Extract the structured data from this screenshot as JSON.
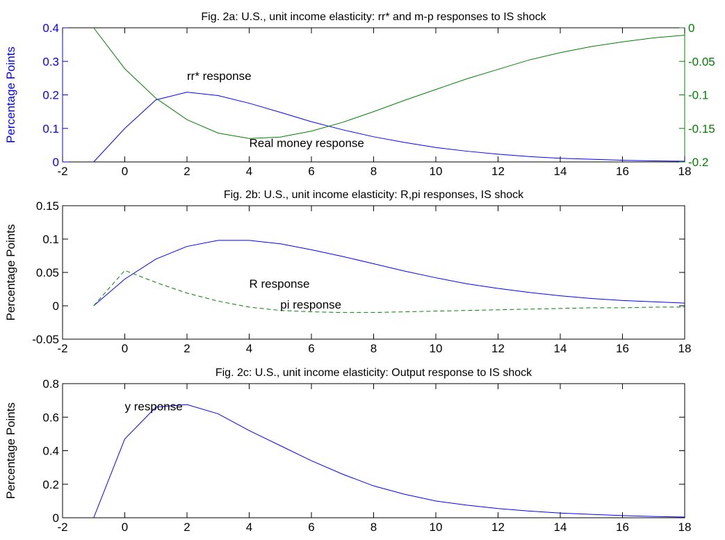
{
  "chart_data": [
    {
      "type": "line",
      "title": "Fig. 2a: U.S., unit income elasticity: rr* and m-p responses to IS shock",
      "ylabel": "Percentage Points",
      "y2label": "",
      "xlim": [
        -2,
        18
      ],
      "ylim": [
        0,
        0.4
      ],
      "y2lim": [
        -0.2,
        0
      ],
      "x_ticks": [
        "-2",
        "0",
        "2",
        "4",
        "6",
        "8",
        "10",
        "12",
        "14",
        "16",
        "18"
      ],
      "y_ticks": [
        "0",
        "0.1",
        "0.2",
        "0.3",
        "0.4"
      ],
      "y2_ticks": [
        "-0.2",
        "-0.15",
        "-0.1",
        "-0.05",
        "0"
      ],
      "grid": false,
      "left_axis_color": "#0000ff",
      "right_axis_color": "#008000",
      "series": [
        {
          "axis": "left",
          "color": "#0000ff",
          "style": "solid",
          "x": [
            -1,
            0,
            1,
            2,
            3,
            4,
            5,
            6,
            7,
            8,
            9,
            10,
            11,
            12,
            13,
            14,
            15,
            16,
            17,
            18
          ],
          "values": [
            0,
            0.1,
            0.185,
            0.208,
            0.198,
            0.175,
            0.148,
            0.12,
            0.096,
            0.075,
            0.058,
            0.043,
            0.032,
            0.023,
            0.016,
            0.011,
            0.008,
            0.005,
            0.003,
            0.002
          ]
        },
        {
          "axis": "right",
          "color": "#008000",
          "style": "solid",
          "x": [
            -1,
            0,
            1,
            2,
            3,
            4,
            5,
            6,
            7,
            8,
            9,
            10,
            11,
            12,
            13,
            14,
            15,
            16,
            17,
            18
          ],
          "values": [
            0,
            -0.061,
            -0.105,
            -0.137,
            -0.157,
            -0.165,
            -0.163,
            -0.154,
            -0.141,
            -0.125,
            -0.108,
            -0.092,
            -0.076,
            -0.062,
            -0.048,
            -0.037,
            -0.028,
            -0.021,
            -0.015,
            -0.011
          ]
        }
      ],
      "annotations": [
        {
          "text": "rr* response",
          "x": 2.0,
          "y": 0.245
        },
        {
          "text": "Real money response",
          "x": 4.0,
          "y": 0.045
        }
      ]
    },
    {
      "type": "line",
      "title": "Fig. 2b: U.S., unit income elasticity: R,pi responses, IS shock",
      "ylabel": "Percentage Points",
      "xlim": [
        -2,
        18
      ],
      "ylim": [
        -0.05,
        0.15
      ],
      "x_ticks": [
        "-2",
        "0",
        "2",
        "4",
        "6",
        "8",
        "10",
        "12",
        "14",
        "16",
        "18"
      ],
      "y_ticks": [
        "-0.05",
        "0",
        "0.05",
        "0.1",
        "0.15"
      ],
      "grid": false,
      "series": [
        {
          "color": "#0000ff",
          "style": "solid",
          "x": [
            -1,
            0,
            1,
            2,
            3,
            4,
            5,
            6,
            7,
            8,
            9,
            10,
            11,
            12,
            13,
            14,
            15,
            16,
            17,
            18
          ],
          "values": [
            0,
            0.04,
            0.07,
            0.089,
            0.098,
            0.098,
            0.093,
            0.084,
            0.074,
            0.063,
            0.052,
            0.042,
            0.033,
            0.026,
            0.02,
            0.015,
            0.011,
            0.008,
            0.006,
            0.004
          ]
        },
        {
          "color": "#008000",
          "style": "dashed",
          "x": [
            -1,
            0,
            1,
            2,
            3,
            4,
            5,
            6,
            7,
            8,
            9,
            10,
            11,
            12,
            13,
            14,
            15,
            16,
            17,
            18
          ],
          "values": [
            0,
            0.053,
            0.035,
            0.019,
            0.007,
            -0.002,
            -0.007,
            -0.009,
            -0.01,
            -0.01,
            -0.009,
            -0.008,
            -0.007,
            -0.006,
            -0.005,
            -0.004,
            -0.003,
            -0.003,
            -0.002,
            -0.002
          ]
        }
      ],
      "annotations": [
        {
          "text": "R response",
          "x": 4.0,
          "y": 0.027
        },
        {
          "text": "pi response",
          "x": 5.0,
          "y": -0.004
        }
      ]
    },
    {
      "type": "line",
      "title": "Fig. 2c: U.S., unit income elasticity: Output response to IS shock",
      "ylabel": "Percentage Points",
      "xlim": [
        -2,
        18
      ],
      "ylim": [
        0,
        0.8
      ],
      "x_ticks": [
        "-2",
        "0",
        "2",
        "4",
        "6",
        "8",
        "10",
        "12",
        "14",
        "16",
        "18"
      ],
      "y_ticks": [
        "0",
        "0.2",
        "0.4",
        "0.6",
        "0.8"
      ],
      "grid": false,
      "series": [
        {
          "color": "#0000ff",
          "style": "solid",
          "x": [
            -1,
            0,
            1,
            2,
            3,
            4,
            5,
            6,
            7,
            8,
            9,
            10,
            11,
            12,
            13,
            14,
            15,
            16,
            17,
            18
          ],
          "values": [
            0,
            0.47,
            0.66,
            0.675,
            0.62,
            0.52,
            0.43,
            0.34,
            0.26,
            0.19,
            0.14,
            0.1,
            0.075,
            0.055,
            0.04,
            0.028,
            0.02,
            0.013,
            0.008,
            0.004
          ]
        }
      ],
      "annotations": [
        {
          "text": "y response",
          "x": 0.0,
          "y": 0.64
        }
      ]
    }
  ]
}
